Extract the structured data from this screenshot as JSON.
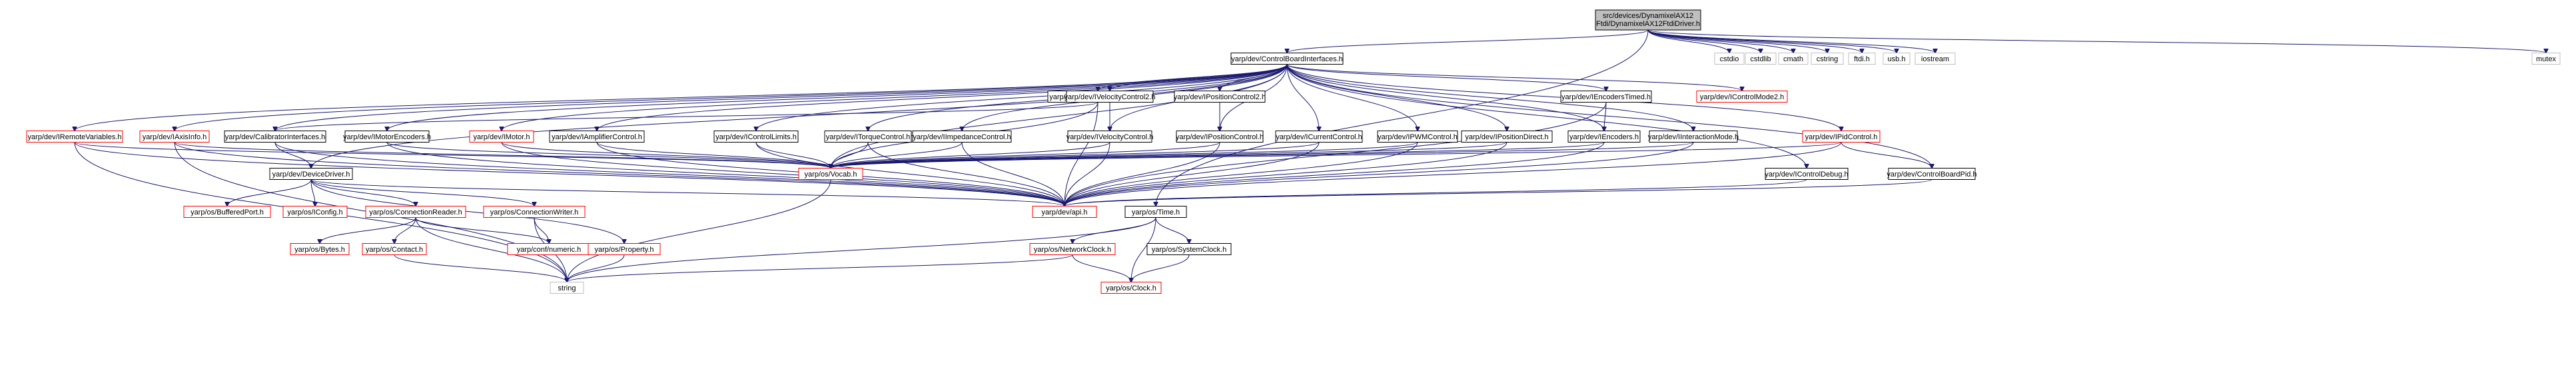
{
  "diagram": {
    "type": "include-dependency-graph",
    "colors": {
      "edge": "#191970",
      "root_fill": "#bfbfbf",
      "missing_border": "#ff0000",
      "system_border": "#bfbfbf"
    },
    "nodes": [
      {
        "id": "root",
        "lines": [
          "src/devices/DynamixelAX12",
          "Ftdi/DynamixelAX12FtdiDriver.h"
        ],
        "style": "root"
      },
      {
        "id": "cbi",
        "lines": [
          "yarp/dev/ControlBoardInterfaces.h"
        ],
        "style": "normal"
      },
      {
        "id": "cstdio",
        "lines": [
          "cstdio"
        ],
        "style": "sys"
      },
      {
        "id": "cstdlib",
        "lines": [
          "cstdlib"
        ],
        "style": "sys"
      },
      {
        "id": "cmath",
        "lines": [
          "cmath"
        ],
        "style": "sys"
      },
      {
        "id": "cstring",
        "lines": [
          "cstring"
        ],
        "style": "sys"
      },
      {
        "id": "ftdi",
        "lines": [
          "ftdi.h"
        ],
        "style": "sys"
      },
      {
        "id": "usb",
        "lines": [
          "usb.h"
        ],
        "style": "sys"
      },
      {
        "id": "iostream",
        "lines": [
          "iostream"
        ],
        "style": "sys"
      },
      {
        "id": "mutex",
        "lines": [
          "mutex"
        ],
        "style": "sys"
      },
      {
        "id": "icalib",
        "lines": [
          "yarp/dev/IControlCalibration.h"
        ],
        "style": "normal"
      },
      {
        "id": "ivelctl2",
        "lines": [
          "yarp/dev/IVelocityControl2.h"
        ],
        "style": "normal"
      },
      {
        "id": "iposctl2",
        "lines": [
          "yarp/dev/IPositionControl2.h"
        ],
        "style": "normal"
      },
      {
        "id": "ienctimed",
        "lines": [
          "yarp/dev/IEncodersTimed.h"
        ],
        "style": "normal"
      },
      {
        "id": "icmode2",
        "lines": [
          "yarp/dev/IControlMode2.h"
        ],
        "style": "red"
      },
      {
        "id": "iremvar",
        "lines": [
          "yarp/dev/IRemoteVariables.h"
        ],
        "style": "red"
      },
      {
        "id": "iaxis",
        "lines": [
          "yarp/dev/IAxisInfo.h"
        ],
        "style": "red"
      },
      {
        "id": "calibif",
        "lines": [
          "yarp/dev/CalibratorInterfaces.h"
        ],
        "style": "normal"
      },
      {
        "id": "imotenc",
        "lines": [
          "yarp/dev/IMotorEncoders.h"
        ],
        "style": "normal"
      },
      {
        "id": "imotor",
        "lines": [
          "yarp/dev/IMotor.h"
        ],
        "style": "red"
      },
      {
        "id": "iamp",
        "lines": [
          "yarp/dev/IAmplifierControl.h"
        ],
        "style": "normal"
      },
      {
        "id": "iclim",
        "lines": [
          "yarp/dev/IControlLimits.h"
        ],
        "style": "normal"
      },
      {
        "id": "itorque",
        "lines": [
          "yarp/dev/ITorqueControl.h"
        ],
        "style": "normal"
      },
      {
        "id": "iimped",
        "lines": [
          "yarp/dev/IImpedanceControl.h"
        ],
        "style": "normal"
      },
      {
        "id": "ivelctl",
        "lines": [
          "yarp/dev/IVelocityControl.h"
        ],
        "style": "normal"
      },
      {
        "id": "iposctl",
        "lines": [
          "yarp/dev/IPositionControl.h"
        ],
        "style": "normal"
      },
      {
        "id": "icur",
        "lines": [
          "yarp/dev/ICurrentControl.h"
        ],
        "style": "normal"
      },
      {
        "id": "ipwm",
        "lines": [
          "yarp/dev/IPWMControl.h"
        ],
        "style": "normal"
      },
      {
        "id": "iposdir",
        "lines": [
          "yarp/dev/IPositionDirect.h"
        ],
        "style": "normal"
      },
      {
        "id": "ienc",
        "lines": [
          "yarp/dev/IEncoders.h"
        ],
        "style": "normal"
      },
      {
        "id": "iinter",
        "lines": [
          "yarp/dev/IInteractionMode.h"
        ],
        "style": "normal"
      },
      {
        "id": "ipid",
        "lines": [
          "yarp/dev/IPidControl.h"
        ],
        "style": "red"
      },
      {
        "id": "devdrv",
        "lines": [
          "yarp/dev/DeviceDriver.h"
        ],
        "style": "normal"
      },
      {
        "id": "vocab",
        "lines": [
          "yarp/os/Vocab.h"
        ],
        "style": "red"
      },
      {
        "id": "icdebug",
        "lines": [
          "yarp/dev/IControlDebug.h"
        ],
        "style": "normal"
      },
      {
        "id": "cbpid",
        "lines": [
          "yarp/dev/ControlBoardPid.h"
        ],
        "style": "normal"
      },
      {
        "id": "bufport",
        "lines": [
          "yarp/os/BufferedPort.h"
        ],
        "style": "red"
      },
      {
        "id": "iconfig",
        "lines": [
          "yarp/os/IConfig.h"
        ],
        "style": "red"
      },
      {
        "id": "connread",
        "lines": [
          "yarp/os/ConnectionReader.h"
        ],
        "style": "red"
      },
      {
        "id": "connwrite",
        "lines": [
          "yarp/os/ConnectionWriter.h"
        ],
        "style": "red"
      },
      {
        "id": "api",
        "lines": [
          "yarp/dev/api.h"
        ],
        "style": "red"
      },
      {
        "id": "time",
        "lines": [
          "yarp/os/Time.h"
        ],
        "style": "normal"
      },
      {
        "id": "bytes",
        "lines": [
          "yarp/os/Bytes.h"
        ],
        "style": "red"
      },
      {
        "id": "contact",
        "lines": [
          "yarp/os/Contact.h"
        ],
        "style": "red"
      },
      {
        "id": "conf",
        "lines": [
          "yarp/conf/numeric.h"
        ],
        "style": "red"
      },
      {
        "id": "property",
        "lines": [
          "yarp/os/Property.h"
        ],
        "style": "red"
      },
      {
        "id": "netclock",
        "lines": [
          "yarp/os/NetworkClock.h"
        ],
        "style": "red"
      },
      {
        "id": "sysclock",
        "lines": [
          "yarp/os/SystemClock.h"
        ],
        "style": "normal"
      },
      {
        "id": "string",
        "lines": [
          "string"
        ],
        "style": "sys"
      },
      {
        "id": "clock",
        "lines": [
          "yarp/os/Clock.h"
        ],
        "style": "red"
      }
    ],
    "edges": [
      [
        "root",
        "cbi"
      ],
      [
        "root",
        "cstdio"
      ],
      [
        "root",
        "cstdlib"
      ],
      [
        "root",
        "cmath"
      ],
      [
        "root",
        "cstring"
      ],
      [
        "root",
        "ftdi"
      ],
      [
        "root",
        "usb"
      ],
      [
        "root",
        "iostream"
      ],
      [
        "root",
        "mutex"
      ],
      [
        "root",
        "time"
      ],
      [
        "cbi",
        "icalib"
      ],
      [
        "cbi",
        "ivelctl2"
      ],
      [
        "cbi",
        "iposctl2"
      ],
      [
        "cbi",
        "ienctimed"
      ],
      [
        "cbi",
        "icmode2"
      ],
      [
        "cbi",
        "iremvar"
      ],
      [
        "cbi",
        "iaxis"
      ],
      [
        "cbi",
        "calibif"
      ],
      [
        "cbi",
        "imotenc"
      ],
      [
        "cbi",
        "imotor"
      ],
      [
        "cbi",
        "iamp"
      ],
      [
        "cbi",
        "iclim"
      ],
      [
        "cbi",
        "itorque"
      ],
      [
        "cbi",
        "iimped"
      ],
      [
        "cbi",
        "ivelctl"
      ],
      [
        "cbi",
        "iposctl"
      ],
      [
        "cbi",
        "icur"
      ],
      [
        "cbi",
        "ipwm"
      ],
      [
        "cbi",
        "iposdir"
      ],
      [
        "cbi",
        "ienc"
      ],
      [
        "cbi",
        "iinter"
      ],
      [
        "cbi",
        "ipid"
      ],
      [
        "cbi",
        "devdrv"
      ],
      [
        "cbi",
        "vocab"
      ],
      [
        "cbi",
        "icdebug"
      ],
      [
        "cbi",
        "cbpid"
      ],
      [
        "icalib",
        "calibif"
      ],
      [
        "icalib",
        "vocab"
      ],
      [
        "icalib",
        "api"
      ],
      [
        "ivelctl2",
        "ivelctl"
      ],
      [
        "iposctl2",
        "iposctl"
      ],
      [
        "ienctimed",
        "ienc"
      ],
      [
        "ienctimed",
        "api"
      ],
      [
        "iremvar",
        "vocab"
      ],
      [
        "iremvar",
        "api"
      ],
      [
        "iremvar",
        "string"
      ],
      [
        "iaxis",
        "vocab"
      ],
      [
        "iaxis",
        "api"
      ],
      [
        "iaxis",
        "string"
      ],
      [
        "calibif",
        "devdrv"
      ],
      [
        "calibif",
        "api"
      ],
      [
        "imotenc",
        "vocab"
      ],
      [
        "imotenc",
        "api"
      ],
      [
        "imotor",
        "vocab"
      ],
      [
        "imotor",
        "api"
      ],
      [
        "iamp",
        "vocab"
      ],
      [
        "iamp",
        "api"
      ],
      [
        "iclim",
        "vocab"
      ],
      [
        "iclim",
        "api"
      ],
      [
        "itorque",
        "vocab"
      ],
      [
        "itorque",
        "api"
      ],
      [
        "iimped",
        "vocab"
      ],
      [
        "iimped",
        "api"
      ],
      [
        "ivelctl",
        "vocab"
      ],
      [
        "ivelctl",
        "api"
      ],
      [
        "iposctl",
        "vocab"
      ],
      [
        "iposctl",
        "api"
      ],
      [
        "icur",
        "vocab"
      ],
      [
        "icur",
        "api"
      ],
      [
        "ipwm",
        "vocab"
      ],
      [
        "ipwm",
        "api"
      ],
      [
        "iposdir",
        "vocab"
      ],
      [
        "iposdir",
        "api"
      ],
      [
        "ienc",
        "vocab"
      ],
      [
        "ienc",
        "api"
      ],
      [
        "iinter",
        "vocab"
      ],
      [
        "iinter",
        "api"
      ],
      [
        "ipid",
        "vocab"
      ],
      [
        "ipid",
        "api"
      ],
      [
        "ipid",
        "cbpid"
      ],
      [
        "icdebug",
        "api"
      ],
      [
        "cbpid",
        "api"
      ],
      [
        "devdrv",
        "bufport"
      ],
      [
        "devdrv",
        "iconfig"
      ],
      [
        "devdrv",
        "connread"
      ],
      [
        "devdrv",
        "connwrite"
      ],
      [
        "devdrv",
        "property"
      ],
      [
        "devdrv",
        "api"
      ],
      [
        "connread",
        "bytes"
      ],
      [
        "connread",
        "contact"
      ],
      [
        "connread",
        "conf"
      ],
      [
        "connread",
        "string"
      ],
      [
        "connwrite",
        "conf"
      ],
      [
        "connwrite",
        "string"
      ],
      [
        "contact",
        "string"
      ],
      [
        "property",
        "string"
      ],
      [
        "vocab",
        "string"
      ],
      [
        "time",
        "netclock"
      ],
      [
        "time",
        "sysclock"
      ],
      [
        "time",
        "clock"
      ],
      [
        "time",
        "string"
      ],
      [
        "netclock",
        "clock"
      ],
      [
        "netclock",
        "string"
      ],
      [
        "sysclock",
        "clock"
      ]
    ]
  }
}
